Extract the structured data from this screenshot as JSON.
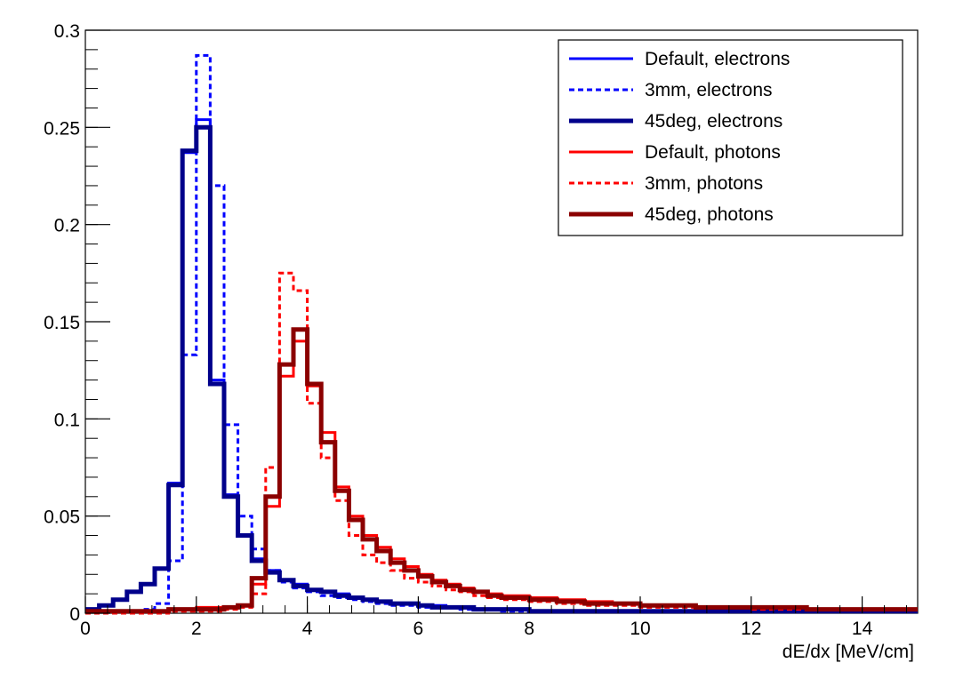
{
  "chart_data": {
    "type": "line",
    "step": true,
    "xlabel": "dE/dx [MeV/cm]",
    "ylabel": "",
    "xlim": [
      0,
      15
    ],
    "ylim": [
      0,
      0.3
    ],
    "x_ticks": [
      "0",
      "2",
      "4",
      "6",
      "8",
      "10",
      "12",
      "14"
    ],
    "y_ticks": [
      "0",
      "0.05",
      "0.1",
      "0.15",
      "0.2",
      "0.25",
      "0.3"
    ],
    "legend_position": "top-right",
    "bin_width": 0.25,
    "series": [
      {
        "name": "Default, electrons",
        "color": "#0000ff",
        "style": "solid",
        "width": 3,
        "x": [
          0,
          0.25,
          0.5,
          0.75,
          1.0,
          1.25,
          1.5,
          1.75,
          2.0,
          2.25,
          2.5,
          2.75,
          3.0,
          3.25,
          3.5,
          3.75,
          4.0,
          4.25,
          4.5,
          4.75,
          5.0,
          5.25,
          5.5,
          5.75,
          6.0,
          6.25,
          6.5,
          6.75,
          7.0,
          7.5,
          8.0,
          9.0,
          10.0,
          11.0,
          12.0,
          13.0,
          14.0,
          15.0
        ],
        "y": [
          0.002,
          0.004,
          0.007,
          0.011,
          0.015,
          0.023,
          0.067,
          0.237,
          0.254,
          0.12,
          0.061,
          0.04,
          0.028,
          0.022,
          0.017,
          0.015,
          0.012,
          0.011,
          0.01,
          0.008,
          0.007,
          0.006,
          0.005,
          0.005,
          0.004,
          0.004,
          0.003,
          0.003,
          0.002,
          0.002,
          0.001,
          0.001,
          0.001,
          0.001,
          0.001,
          0.001,
          0.001,
          0.001
        ]
      },
      {
        "name": "3mm, electrons",
        "color": "#0000ff",
        "style": "dashed",
        "width": 3,
        "x": [
          0,
          0.25,
          0.5,
          0.75,
          1.0,
          1.25,
          1.5,
          1.75,
          2.0,
          2.25,
          2.5,
          2.75,
          3.0,
          3.25,
          3.5,
          3.75,
          4.0,
          4.25,
          4.5,
          4.75,
          5.0,
          5.25,
          5.5,
          5.75,
          6.0,
          6.25,
          6.5,
          6.75,
          7.0,
          7.5,
          8.0,
          9.0,
          10.0,
          11.0,
          12.0,
          13.0,
          14.0,
          15.0
        ],
        "y": [
          0.0,
          0.0,
          0.0,
          0.001,
          0.002,
          0.005,
          0.027,
          0.133,
          0.287,
          0.22,
          0.097,
          0.05,
          0.033,
          0.022,
          0.016,
          0.013,
          0.011,
          0.009,
          0.008,
          0.007,
          0.006,
          0.005,
          0.004,
          0.004,
          0.003,
          0.003,
          0.003,
          0.002,
          0.002,
          0.001,
          0.001,
          0.001,
          0.001,
          0.001,
          0.001,
          0.001,
          0.001,
          0.001
        ]
      },
      {
        "name": "45deg, electrons",
        "color": "#00008b",
        "style": "solid",
        "width": 5,
        "x": [
          0,
          0.25,
          0.5,
          0.75,
          1.0,
          1.25,
          1.5,
          1.75,
          2.0,
          2.25,
          2.5,
          2.75,
          3.0,
          3.25,
          3.5,
          3.75,
          4.0,
          4.25,
          4.5,
          4.75,
          5.0,
          5.25,
          5.5,
          5.75,
          6.0,
          6.25,
          6.5,
          6.75,
          7.0,
          7.5,
          8.0,
          9.0,
          10.0,
          11.0,
          12.0,
          13.0,
          14.0,
          15.0
        ],
        "y": [
          0.002,
          0.004,
          0.007,
          0.011,
          0.015,
          0.023,
          0.066,
          0.238,
          0.25,
          0.118,
          0.06,
          0.04,
          0.027,
          0.021,
          0.017,
          0.014,
          0.012,
          0.011,
          0.009,
          0.008,
          0.007,
          0.006,
          0.005,
          0.005,
          0.004,
          0.003,
          0.003,
          0.003,
          0.002,
          0.002,
          0.001,
          0.001,
          0.001,
          0.001,
          0.001,
          0.001,
          0.001,
          0.001
        ]
      },
      {
        "name": "Default, photons",
        "color": "#ff0000",
        "style": "solid",
        "width": 3,
        "x": [
          0,
          0.5,
          1.0,
          1.5,
          2.0,
          2.5,
          2.75,
          3.0,
          3.25,
          3.5,
          3.75,
          4.0,
          4.25,
          4.5,
          4.75,
          5.0,
          5.25,
          5.5,
          5.75,
          6.0,
          6.25,
          6.5,
          6.75,
          7.0,
          7.25,
          7.5,
          8.0,
          8.5,
          9.0,
          9.5,
          10.0,
          11.0,
          12.0,
          13.0,
          14.0,
          15.0
        ],
        "y": [
          0.001,
          0.001,
          0.001,
          0.002,
          0.003,
          0.003,
          0.004,
          0.015,
          0.055,
          0.122,
          0.14,
          0.117,
          0.093,
          0.065,
          0.05,
          0.04,
          0.034,
          0.028,
          0.024,
          0.02,
          0.017,
          0.015,
          0.013,
          0.011,
          0.01,
          0.009,
          0.008,
          0.007,
          0.006,
          0.005,
          0.004,
          0.003,
          0.003,
          0.002,
          0.002,
          0.002
        ]
      },
      {
        "name": "3mm, photons",
        "color": "#ff0000",
        "style": "dashed",
        "width": 3,
        "x": [
          0,
          0.5,
          1.0,
          1.5,
          2.0,
          2.5,
          2.75,
          3.0,
          3.25,
          3.5,
          3.75,
          4.0,
          4.25,
          4.5,
          4.75,
          5.0,
          5.25,
          5.5,
          5.75,
          6.0,
          6.25,
          6.5,
          6.75,
          7.0,
          7.25,
          7.5,
          8.0,
          8.5,
          9.0,
          9.5,
          10.0,
          11.0,
          12.0,
          13.0,
          14.0,
          15.0
        ],
        "y": [
          0.0,
          0.0,
          0.0,
          0.001,
          0.001,
          0.002,
          0.003,
          0.01,
          0.075,
          0.175,
          0.166,
          0.108,
          0.08,
          0.058,
          0.04,
          0.03,
          0.026,
          0.022,
          0.018,
          0.016,
          0.014,
          0.012,
          0.011,
          0.009,
          0.008,
          0.007,
          0.006,
          0.005,
          0.004,
          0.004,
          0.003,
          0.003,
          0.002,
          0.002,
          0.002,
          0.001
        ]
      },
      {
        "name": "45deg, photons",
        "color": "#8b0000",
        "style": "solid",
        "width": 5,
        "x": [
          0,
          0.5,
          1.0,
          1.5,
          2.0,
          2.5,
          2.75,
          3.0,
          3.25,
          3.5,
          3.75,
          4.0,
          4.25,
          4.5,
          4.75,
          5.0,
          5.25,
          5.5,
          5.75,
          6.0,
          6.25,
          6.5,
          6.75,
          7.0,
          7.25,
          7.5,
          8.0,
          8.5,
          9.0,
          9.5,
          10.0,
          11.0,
          12.0,
          13.0,
          14.0,
          15.0
        ],
        "y": [
          0.001,
          0.001,
          0.001,
          0.002,
          0.002,
          0.003,
          0.004,
          0.018,
          0.06,
          0.128,
          0.146,
          0.118,
          0.088,
          0.063,
          0.048,
          0.038,
          0.032,
          0.026,
          0.022,
          0.019,
          0.016,
          0.014,
          0.012,
          0.011,
          0.009,
          0.008,
          0.007,
          0.006,
          0.005,
          0.005,
          0.004,
          0.003,
          0.003,
          0.002,
          0.002,
          0.002
        ]
      }
    ]
  }
}
